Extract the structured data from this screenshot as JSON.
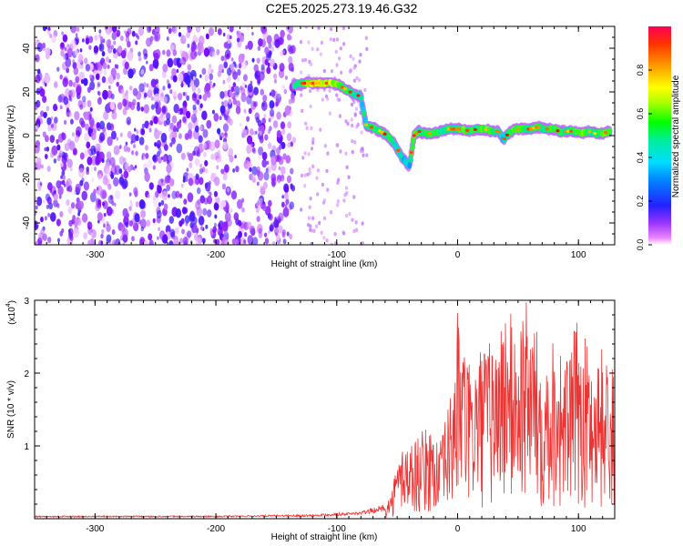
{
  "title": "C2E5.2025.273.19.46.G32",
  "top_panel": {
    "xlabel": "Height of straight line (km)",
    "ylabel": "Frequency (Hz)",
    "xlim": [
      -350,
      130
    ],
    "ylim": [
      -50,
      50
    ],
    "xticks": [
      -300,
      -200,
      -100,
      0,
      100
    ],
    "yticks": [
      -40,
      -20,
      0,
      20,
      40
    ],
    "colorbar": {
      "label": "Normalized spectral amplitude",
      "range": [
        0,
        1
      ],
      "ticks": [
        "0.0",
        "0.2",
        "0.4",
        "0.6",
        "0.8"
      ]
    }
  },
  "bottom_panel": {
    "xlabel": "Height of straight line (km)",
    "ylabel": "SNR (10 * v/v)",
    "multiplier_label": "(x10",
    "multiplier_exp": "4",
    "xlim": [
      -350,
      130
    ],
    "ylim": [
      0,
      3
    ],
    "xticks": [
      -300,
      -200,
      -100,
      0,
      100
    ],
    "yticks": [
      1,
      2,
      3
    ]
  },
  "chart_data": [
    {
      "type": "heatmap",
      "title": "C2E5.2025.273.19.46.G32",
      "xlabel": "Height of straight line (km)",
      "ylabel": "Frequency (Hz)",
      "colorbar_label": "Normalized spectral amplitude",
      "colormap": [
        "#ffffff",
        "#dd99ff",
        "#6600ff",
        "#0044ff",
        "#00ccff",
        "#00ff66",
        "#ffff00",
        "#ff8800",
        "#ff0000"
      ],
      "ridge": {
        "x": [
          -135,
          -128,
          -120,
          -112,
          -104,
          -98,
          -92,
          -86,
          -80,
          -76,
          -72,
          -68,
          -64,
          -58,
          -52,
          -46,
          -40,
          -36,
          -32,
          -28,
          -24,
          -20,
          -14,
          -8,
          -2,
          4,
          10,
          16,
          22,
          28,
          34,
          38,
          42,
          48,
          54,
          60,
          66,
          72,
          78,
          84,
          90,
          96,
          102,
          108,
          114,
          120,
          126
        ],
        "y": [
          23,
          24,
          24,
          24,
          24,
          23,
          21,
          19,
          18,
          5,
          4,
          3,
          2,
          0,
          -4,
          -10,
          -14,
          0,
          2,
          1,
          1,
          1,
          2,
          3,
          3,
          3,
          2,
          3,
          3,
          2,
          2,
          -2,
          1,
          3,
          3,
          3,
          4,
          3,
          3,
          2,
          2,
          2,
          1,
          2,
          1,
          1,
          2
        ],
        "amplitude": [
          0.5,
          0.6,
          0.95,
          0.9,
          0.8,
          0.7,
          0.6,
          0.5,
          0.4,
          0.45,
          0.5,
          0.55,
          0.5,
          0.6,
          0.5,
          0.4,
          0.3,
          0.8,
          0.6,
          0.5,
          0.7,
          0.6,
          0.5,
          0.6,
          0.5,
          0.7,
          0.6,
          0.5,
          0.7,
          0.6,
          0.5,
          0.3,
          0.5,
          0.7,
          0.6,
          0.5,
          0.6,
          0.5,
          0.7,
          0.6,
          0.5,
          0.6,
          0.8,
          0.6,
          0.5,
          0.7,
          0.6
        ]
      },
      "noise_region_x": [
        -350,
        -135
      ],
      "xlim": [
        -350,
        130
      ],
      "ylim": [
        -50,
        50
      ],
      "colorbar_range": [
        0,
        1
      ]
    },
    {
      "type": "line",
      "xlabel": "Height of straight line (km)",
      "ylabel": "SNR (10 * v/v)",
      "y_multiplier": "x10^4",
      "color": "#ee3333",
      "envelope_x": [
        -350,
        -200,
        -120,
        -80,
        -60,
        -55,
        -50,
        -45,
        -40,
        -30,
        -20,
        -15,
        -10,
        -5,
        0,
        10,
        20,
        30,
        40,
        50,
        55,
        60,
        70,
        80,
        90,
        100,
        110,
        120,
        130
      ],
      "envelope_y": [
        0.04,
        0.04,
        0.06,
        0.1,
        0.2,
        0.35,
        0.8,
        1.1,
        1.05,
        1.2,
        1.3,
        1.0,
        1.4,
        1.8,
        2.9,
        2.1,
        2.4,
        2.5,
        2.95,
        2.7,
        3.0,
        3.0,
        2.3,
        2.6,
        2.2,
        2.8,
        2.3,
        2.4,
        2.0
      ],
      "xlim": [
        -350,
        130
      ],
      "ylim": [
        0,
        3
      ]
    }
  ]
}
